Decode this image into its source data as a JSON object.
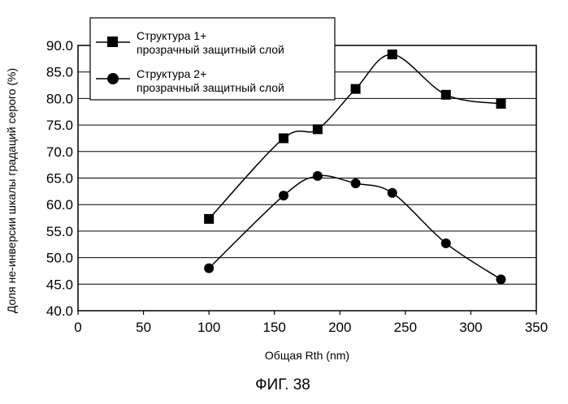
{
  "caption": "ФИГ. 38",
  "chart_data": {
    "type": "line",
    "title": "",
    "xlabel": "Общая Rth (nm)",
    "ylabel": "Доля не-инверсии шкалы градаций серого (%)",
    "xlim": [
      0,
      350
    ],
    "ylim": [
      40.0,
      90.0
    ],
    "xticks": [
      0,
      50,
      100,
      150,
      200,
      250,
      300,
      350
    ],
    "yticks": [
      "40.0",
      "45.0",
      "50.0",
      "55.0",
      "60.0",
      "65.0",
      "70.0",
      "75.0",
      "80.0",
      "85.0",
      "90.0"
    ],
    "grid": "horizontal",
    "legend_position": "top-left",
    "series": [
      {
        "name_line1": "Структура 1+",
        "name_line2": "прозрачный защитный слой",
        "marker": "square",
        "x": [
          100,
          157,
          183,
          212,
          240,
          281,
          323
        ],
        "y": [
          57.3,
          72.5,
          74.2,
          81.8,
          88.3,
          80.7,
          79.0
        ]
      },
      {
        "name_line1": "Структура 2+",
        "name_line2": "прозрачный защитный слой",
        "marker": "circle",
        "x": [
          100,
          157,
          183,
          212,
          240,
          281,
          323
        ],
        "y": [
          48.0,
          61.7,
          65.4,
          64.0,
          62.2,
          52.7,
          45.9
        ]
      }
    ]
  }
}
